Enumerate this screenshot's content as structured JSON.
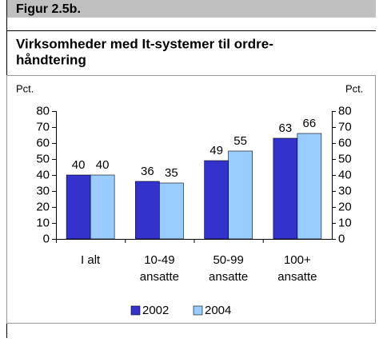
{
  "chart_data": {
    "type": "bar",
    "header": "Figur 2.5b.",
    "title": [
      "Virksomheder med It-systemer til ordre-",
      "håndtering"
    ],
    "y_label": "Pct.",
    "y2_label": "Pct.",
    "categories": [
      [
        "I alt"
      ],
      [
        "10-49",
        "ansatte"
      ],
      [
        "50-99",
        "ansatte"
      ],
      [
        "100+",
        "ansatte"
      ]
    ],
    "series": [
      {
        "name": "2002",
        "color": "#3333cc",
        "values": [
          40,
          36,
          49,
          63
        ]
      },
      {
        "name": "2004",
        "color": "#99ccff",
        "values": [
          40,
          35,
          55,
          66
        ]
      }
    ],
    "ylim": [
      0,
      80
    ],
    "yticks": [
      0,
      10,
      20,
      30,
      40,
      50,
      60,
      70,
      80
    ],
    "y2lim": [
      0,
      80
    ],
    "y2ticks": [
      0,
      10,
      20,
      30,
      40,
      50,
      60,
      70,
      80
    ],
    "legend": "bottom"
  }
}
